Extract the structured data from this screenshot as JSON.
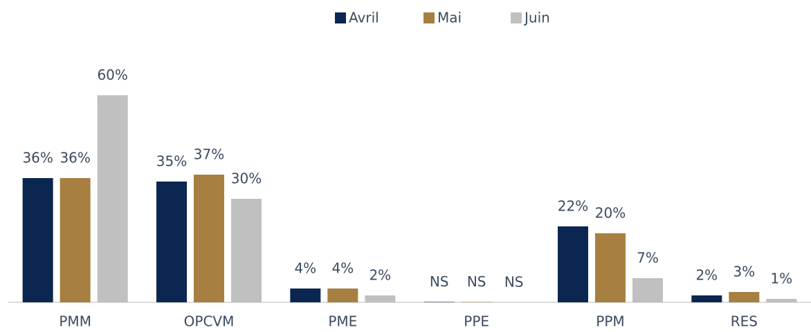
{
  "chart_data": {
    "type": "bar",
    "categories": [
      "PMM",
      "OPCVM",
      "PME",
      "PPE",
      "PPM",
      "RES"
    ],
    "series": [
      {
        "name": "Avril",
        "color": "#0b2650",
        "values": [
          36,
          35,
          4,
          0.1,
          22,
          2
        ],
        "value_labels": [
          "36%",
          "35%",
          "4%",
          "NS",
          "22%",
          "2%"
        ]
      },
      {
        "name": "Mai",
        "color": "#a67f41",
        "values": [
          36,
          37,
          4,
          0.1,
          20,
          3
        ],
        "value_labels": [
          "36%",
          "37%",
          "4%",
          "NS",
          "20%",
          "3%"
        ]
      },
      {
        "name": "Juin",
        "color": "#c0c0c0",
        "values": [
          60,
          30,
          2,
          0,
          7,
          1
        ],
        "value_labels": [
          "60%",
          "30%",
          "2%",
          "NS",
          "7%",
          "1%"
        ]
      }
    ],
    "ylim": [
      0,
      60
    ],
    "legend": "top"
  }
}
